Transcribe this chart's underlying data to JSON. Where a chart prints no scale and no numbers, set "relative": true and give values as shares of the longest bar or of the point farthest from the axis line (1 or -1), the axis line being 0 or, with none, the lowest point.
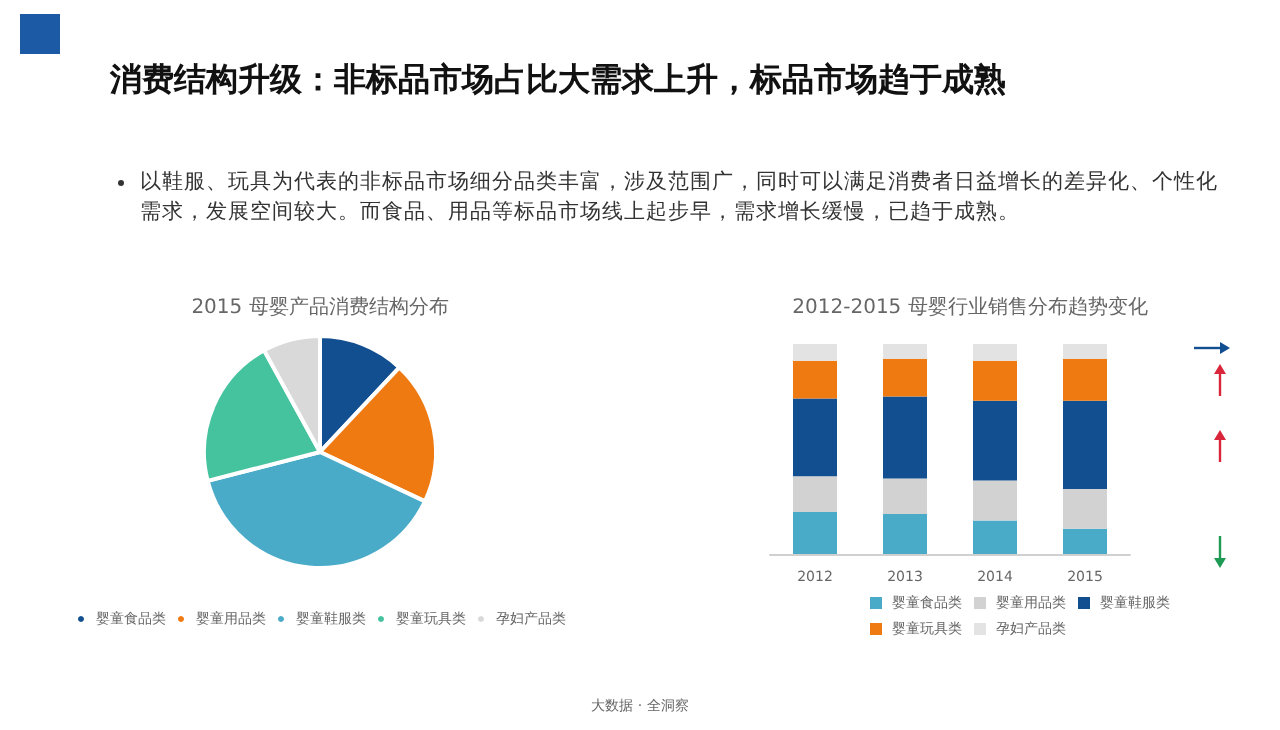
{
  "chart_data": [
    {
      "type": "other",
      "title": "消费结构升级：非标品市场占比大需求上升，标品市场趋于成熟",
      "annotations": [
        "以鞋服、玩具为代表的非标品市场细分品类丰富，涉及范围广，同时可以满足消费者日益增长的差异化、个性化需求，发展空间较大。而食品、用品等标品市场线上起步早，需求增长缓慢，已趋于成熟。",
        "大数据 · 全洞察"
      ]
    },
    {
      "type": "pie",
      "title": "2015 母婴产品消费结构分布",
      "categories": [
        "婴童食品类",
        "婴童用品类",
        "婴童鞋服类",
        "婴童玩具类",
        "孕妇产品类"
      ],
      "values": [
        12,
        20,
        39,
        21,
        8
      ],
      "colors": [
        "#124f90",
        "#ef7a12",
        "#4aabc8",
        "#45c39e",
        "#d9d9d9"
      ],
      "legend": "bottom"
    },
    {
      "type": "bar",
      "title": "2012-2015 母婴行业销售分布趋势变化",
      "categories": [
        "2012",
        "2013",
        "2014",
        "2015"
      ],
      "stacked": true,
      "relative": true,
      "legend": "bottom",
      "series": [
        {
          "name": "婴童食品类",
          "color": "#4aabc8",
          "values": [
            0.2,
            0.19,
            0.16,
            0.12
          ]
        },
        {
          "name": "婴童用品类",
          "color": "#d2d2d2",
          "values": [
            0.17,
            0.17,
            0.19,
            0.19
          ]
        },
        {
          "name": "婴童鞋服类",
          "color": "#124f90",
          "values": [
            0.37,
            0.39,
            0.38,
            0.42
          ]
        },
        {
          "name": "婴童玩具类",
          "color": "#ef7a12",
          "values": [
            0.18,
            0.18,
            0.19,
            0.2
          ]
        },
        {
          "name": "孕妇产品类",
          "color": "#e3e3e3",
          "values": [
            0.08,
            0.07,
            0.08,
            0.07
          ]
        }
      ]
    }
  ]
}
